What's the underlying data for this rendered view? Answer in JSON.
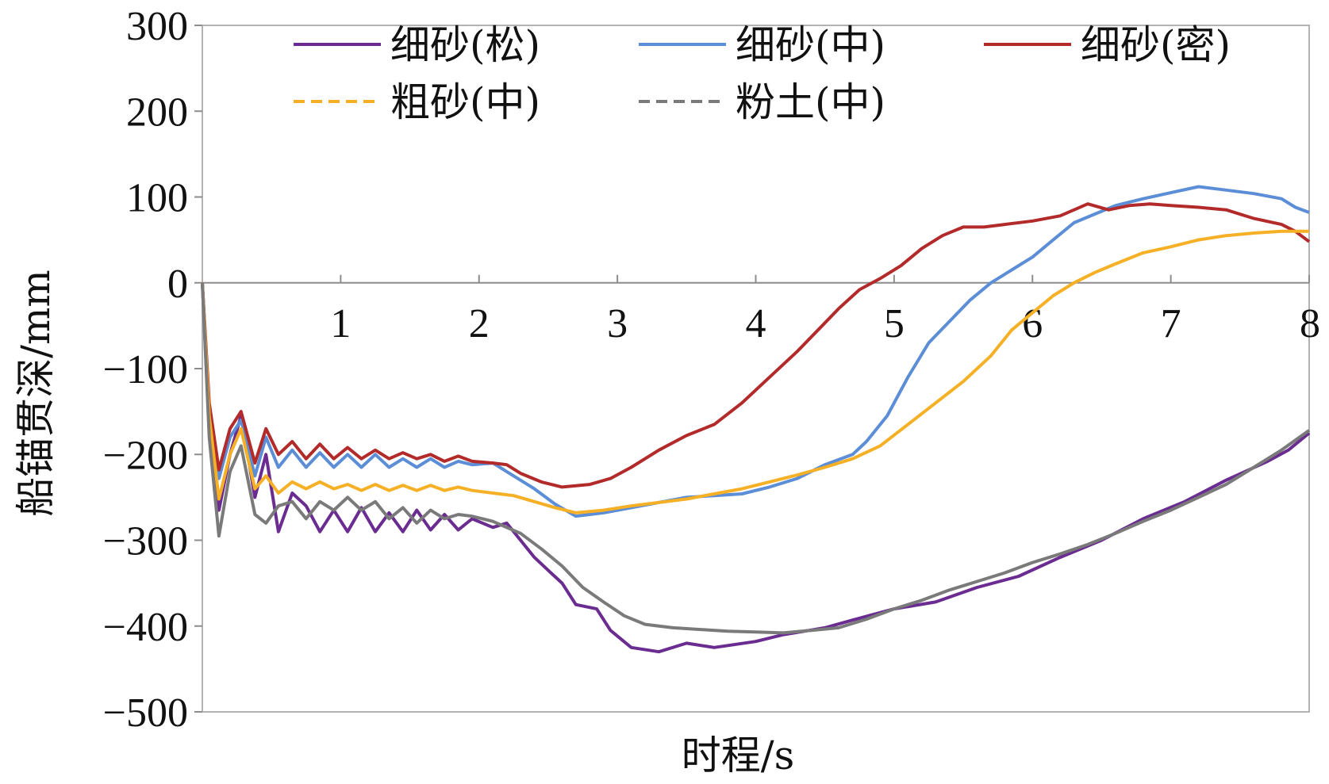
{
  "chart_data": {
    "type": "line",
    "xlabel": "时程/s",
    "ylabel": "船锚贯深/mm",
    "xlim": [
      0,
      8
    ],
    "ylim": [
      -500,
      300
    ],
    "x_ticks": [
      "1",
      "2",
      "3",
      "4",
      "5",
      "6",
      "7",
      "8"
    ],
    "y_ticks": [
      "300",
      "200",
      "100",
      "0",
      "−100",
      "−200",
      "−300",
      "−400",
      "−500"
    ],
    "legend_position": "top",
    "series": [
      {
        "name": "细砂(松)",
        "color": "#6a2c91",
        "dash": "solid",
        "points": [
          [
            0,
            0
          ],
          [
            0.05,
            -170
          ],
          [
            0.12,
            -265
          ],
          [
            0.2,
            -200
          ],
          [
            0.28,
            -155
          ],
          [
            0.38,
            -250
          ],
          [
            0.46,
            -200
          ],
          [
            0.55,
            -290
          ],
          [
            0.65,
            -245
          ],
          [
            0.75,
            -260
          ],
          [
            0.85,
            -290
          ],
          [
            0.95,
            -265
          ],
          [
            1.05,
            -290
          ],
          [
            1.15,
            -262
          ],
          [
            1.25,
            -290
          ],
          [
            1.35,
            -268
          ],
          [
            1.45,
            -290
          ],
          [
            1.55,
            -265
          ],
          [
            1.65,
            -288
          ],
          [
            1.75,
            -270
          ],
          [
            1.85,
            -288
          ],
          [
            1.95,
            -275
          ],
          [
            2.1,
            -285
          ],
          [
            2.2,
            -280
          ],
          [
            2.3,
            -300
          ],
          [
            2.4,
            -320
          ],
          [
            2.5,
            -335
          ],
          [
            2.6,
            -350
          ],
          [
            2.7,
            -375
          ],
          [
            2.85,
            -380
          ],
          [
            2.95,
            -405
          ],
          [
            3.1,
            -425
          ],
          [
            3.3,
            -430
          ],
          [
            3.5,
            -420
          ],
          [
            3.7,
            -425
          ],
          [
            4.0,
            -418
          ],
          [
            4.2,
            -410
          ],
          [
            4.5,
            -402
          ],
          [
            4.7,
            -393
          ],
          [
            5.0,
            -380
          ],
          [
            5.3,
            -372
          ],
          [
            5.6,
            -355
          ],
          [
            5.9,
            -342
          ],
          [
            6.2,
            -320
          ],
          [
            6.5,
            -300
          ],
          [
            6.8,
            -275
          ],
          [
            7.1,
            -255
          ],
          [
            7.4,
            -230
          ],
          [
            7.7,
            -208
          ],
          [
            7.85,
            -195
          ],
          [
            8.0,
            -175
          ]
        ]
      },
      {
        "name": "细砂(中)",
        "color": "#5b8ed6",
        "dash": "solid",
        "points": [
          [
            0,
            0
          ],
          [
            0.05,
            -150
          ],
          [
            0.12,
            -228
          ],
          [
            0.2,
            -180
          ],
          [
            0.28,
            -160
          ],
          [
            0.38,
            -225
          ],
          [
            0.46,
            -180
          ],
          [
            0.55,
            -215
          ],
          [
            0.65,
            -195
          ],
          [
            0.75,
            -215
          ],
          [
            0.85,
            -198
          ],
          [
            0.95,
            -215
          ],
          [
            1.05,
            -200
          ],
          [
            1.15,
            -215
          ],
          [
            1.25,
            -200
          ],
          [
            1.35,
            -215
          ],
          [
            1.45,
            -205
          ],
          [
            1.55,
            -215
          ],
          [
            1.65,
            -205
          ],
          [
            1.75,
            -215
          ],
          [
            1.85,
            -208
          ],
          [
            1.95,
            -212
          ],
          [
            2.1,
            -210
          ],
          [
            2.2,
            -220
          ],
          [
            2.4,
            -240
          ],
          [
            2.55,
            -258
          ],
          [
            2.7,
            -272
          ],
          [
            2.9,
            -268
          ],
          [
            3.1,
            -262
          ],
          [
            3.3,
            -256
          ],
          [
            3.5,
            -250
          ],
          [
            3.7,
            -248
          ],
          [
            3.9,
            -246
          ],
          [
            4.1,
            -238
          ],
          [
            4.3,
            -228
          ],
          [
            4.5,
            -212
          ],
          [
            4.7,
            -200
          ],
          [
            4.8,
            -185
          ],
          [
            4.95,
            -155
          ],
          [
            5.1,
            -110
          ],
          [
            5.25,
            -70
          ],
          [
            5.4,
            -45
          ],
          [
            5.55,
            -20
          ],
          [
            5.7,
            0
          ],
          [
            5.85,
            15
          ],
          [
            6.0,
            30
          ],
          [
            6.15,
            50
          ],
          [
            6.3,
            70
          ],
          [
            6.45,
            80
          ],
          [
            6.6,
            90
          ],
          [
            6.8,
            98
          ],
          [
            7.0,
            105
          ],
          [
            7.2,
            112
          ],
          [
            7.4,
            108
          ],
          [
            7.6,
            104
          ],
          [
            7.8,
            98
          ],
          [
            7.9,
            88
          ],
          [
            8.0,
            82
          ]
        ]
      },
      {
        "name": "细砂(密)",
        "color": "#b22a2a",
        "dash": "solid",
        "points": [
          [
            0,
            0
          ],
          [
            0.05,
            -140
          ],
          [
            0.12,
            -218
          ],
          [
            0.2,
            -170
          ],
          [
            0.28,
            -150
          ],
          [
            0.38,
            -210
          ],
          [
            0.46,
            -170
          ],
          [
            0.55,
            -200
          ],
          [
            0.65,
            -185
          ],
          [
            0.75,
            -205
          ],
          [
            0.85,
            -188
          ],
          [
            0.95,
            -205
          ],
          [
            1.05,
            -192
          ],
          [
            1.15,
            -205
          ],
          [
            1.25,
            -195
          ],
          [
            1.35,
            -205
          ],
          [
            1.45,
            -198
          ],
          [
            1.55,
            -205
          ],
          [
            1.65,
            -200
          ],
          [
            1.75,
            -208
          ],
          [
            1.85,
            -202
          ],
          [
            1.95,
            -208
          ],
          [
            2.1,
            -210
          ],
          [
            2.2,
            -212
          ],
          [
            2.3,
            -222
          ],
          [
            2.45,
            -232
          ],
          [
            2.6,
            -238
          ],
          [
            2.8,
            -235
          ],
          [
            2.95,
            -228
          ],
          [
            3.1,
            -215
          ],
          [
            3.3,
            -195
          ],
          [
            3.5,
            -178
          ],
          [
            3.7,
            -165
          ],
          [
            3.9,
            -140
          ],
          [
            4.1,
            -110
          ],
          [
            4.3,
            -80
          ],
          [
            4.45,
            -55
          ],
          [
            4.6,
            -30
          ],
          [
            4.75,
            -8
          ],
          [
            4.9,
            5
          ],
          [
            5.05,
            20
          ],
          [
            5.2,
            40
          ],
          [
            5.35,
            55
          ],
          [
            5.5,
            65
          ],
          [
            5.65,
            65
          ],
          [
            5.8,
            68
          ],
          [
            6.0,
            72
          ],
          [
            6.2,
            78
          ],
          [
            6.4,
            92
          ],
          [
            6.55,
            85
          ],
          [
            6.7,
            90
          ],
          [
            6.85,
            92
          ],
          [
            7.0,
            90
          ],
          [
            7.2,
            88
          ],
          [
            7.4,
            85
          ],
          [
            7.6,
            75
          ],
          [
            7.8,
            68
          ],
          [
            7.9,
            60
          ],
          [
            8.0,
            48
          ]
        ]
      },
      {
        "name": "粗砂(中)",
        "color": "#f5b026",
        "dash": "dash",
        "points": [
          [
            0,
            0
          ],
          [
            0.05,
            -155
          ],
          [
            0.12,
            -252
          ],
          [
            0.2,
            -200
          ],
          [
            0.28,
            -170
          ],
          [
            0.38,
            -240
          ],
          [
            0.46,
            -225
          ],
          [
            0.55,
            -245
          ],
          [
            0.65,
            -232
          ],
          [
            0.75,
            -240
          ],
          [
            0.85,
            -232
          ],
          [
            0.95,
            -240
          ],
          [
            1.05,
            -235
          ],
          [
            1.15,
            -242
          ],
          [
            1.25,
            -235
          ],
          [
            1.35,
            -242
          ],
          [
            1.45,
            -236
          ],
          [
            1.55,
            -242
          ],
          [
            1.65,
            -236
          ],
          [
            1.75,
            -242
          ],
          [
            1.85,
            -238
          ],
          [
            1.95,
            -242
          ],
          [
            2.1,
            -245
          ],
          [
            2.25,
            -248
          ],
          [
            2.4,
            -255
          ],
          [
            2.55,
            -262
          ],
          [
            2.7,
            -268
          ],
          [
            2.9,
            -265
          ],
          [
            3.1,
            -260
          ],
          [
            3.3,
            -256
          ],
          [
            3.5,
            -252
          ],
          [
            3.7,
            -246
          ],
          [
            3.9,
            -240
          ],
          [
            4.1,
            -232
          ],
          [
            4.3,
            -224
          ],
          [
            4.5,
            -215
          ],
          [
            4.7,
            -205
          ],
          [
            4.9,
            -190
          ],
          [
            5.1,
            -165
          ],
          [
            5.3,
            -140
          ],
          [
            5.5,
            -115
          ],
          [
            5.7,
            -85
          ],
          [
            5.85,
            -55
          ],
          [
            6.0,
            -35
          ],
          [
            6.15,
            -15
          ],
          [
            6.3,
            0
          ],
          [
            6.45,
            12
          ],
          [
            6.6,
            22
          ],
          [
            6.8,
            35
          ],
          [
            7.0,
            42
          ],
          [
            7.2,
            50
          ],
          [
            7.4,
            55
          ],
          [
            7.6,
            58
          ],
          [
            7.8,
            60
          ],
          [
            8.0,
            60
          ]
        ]
      },
      {
        "name": "粉土(中)",
        "color": "#7a7a7a",
        "dash": "dash",
        "points": [
          [
            0,
            0
          ],
          [
            0.05,
            -180
          ],
          [
            0.12,
            -295
          ],
          [
            0.2,
            -220
          ],
          [
            0.28,
            -190
          ],
          [
            0.38,
            -270
          ],
          [
            0.46,
            -280
          ],
          [
            0.55,
            -260
          ],
          [
            0.65,
            -255
          ],
          [
            0.75,
            -275
          ],
          [
            0.85,
            -255
          ],
          [
            0.95,
            -265
          ],
          [
            1.05,
            -250
          ],
          [
            1.15,
            -265
          ],
          [
            1.25,
            -255
          ],
          [
            1.35,
            -275
          ],
          [
            1.45,
            -262
          ],
          [
            1.55,
            -280
          ],
          [
            1.65,
            -265
          ],
          [
            1.75,
            -275
          ],
          [
            1.85,
            -270
          ],
          [
            1.95,
            -272
          ],
          [
            2.1,
            -278
          ],
          [
            2.2,
            -285
          ],
          [
            2.3,
            -292
          ],
          [
            2.45,
            -310
          ],
          [
            2.6,
            -330
          ],
          [
            2.75,
            -355
          ],
          [
            2.9,
            -372
          ],
          [
            3.05,
            -388
          ],
          [
            3.2,
            -398
          ],
          [
            3.4,
            -402
          ],
          [
            3.6,
            -404
          ],
          [
            3.8,
            -406
          ],
          [
            4.0,
            -407
          ],
          [
            4.2,
            -408
          ],
          [
            4.4,
            -405
          ],
          [
            4.6,
            -402
          ],
          [
            4.8,
            -392
          ],
          [
            5.0,
            -380
          ],
          [
            5.2,
            -370
          ],
          [
            5.4,
            -358
          ],
          [
            5.6,
            -348
          ],
          [
            5.8,
            -338
          ],
          [
            6.0,
            -326
          ],
          [
            6.2,
            -316
          ],
          [
            6.4,
            -305
          ],
          [
            6.6,
            -292
          ],
          [
            6.8,
            -278
          ],
          [
            7.0,
            -265
          ],
          [
            7.2,
            -250
          ],
          [
            7.4,
            -235
          ],
          [
            7.6,
            -215
          ],
          [
            7.8,
            -195
          ],
          [
            8.0,
            -172
          ]
        ]
      }
    ]
  }
}
